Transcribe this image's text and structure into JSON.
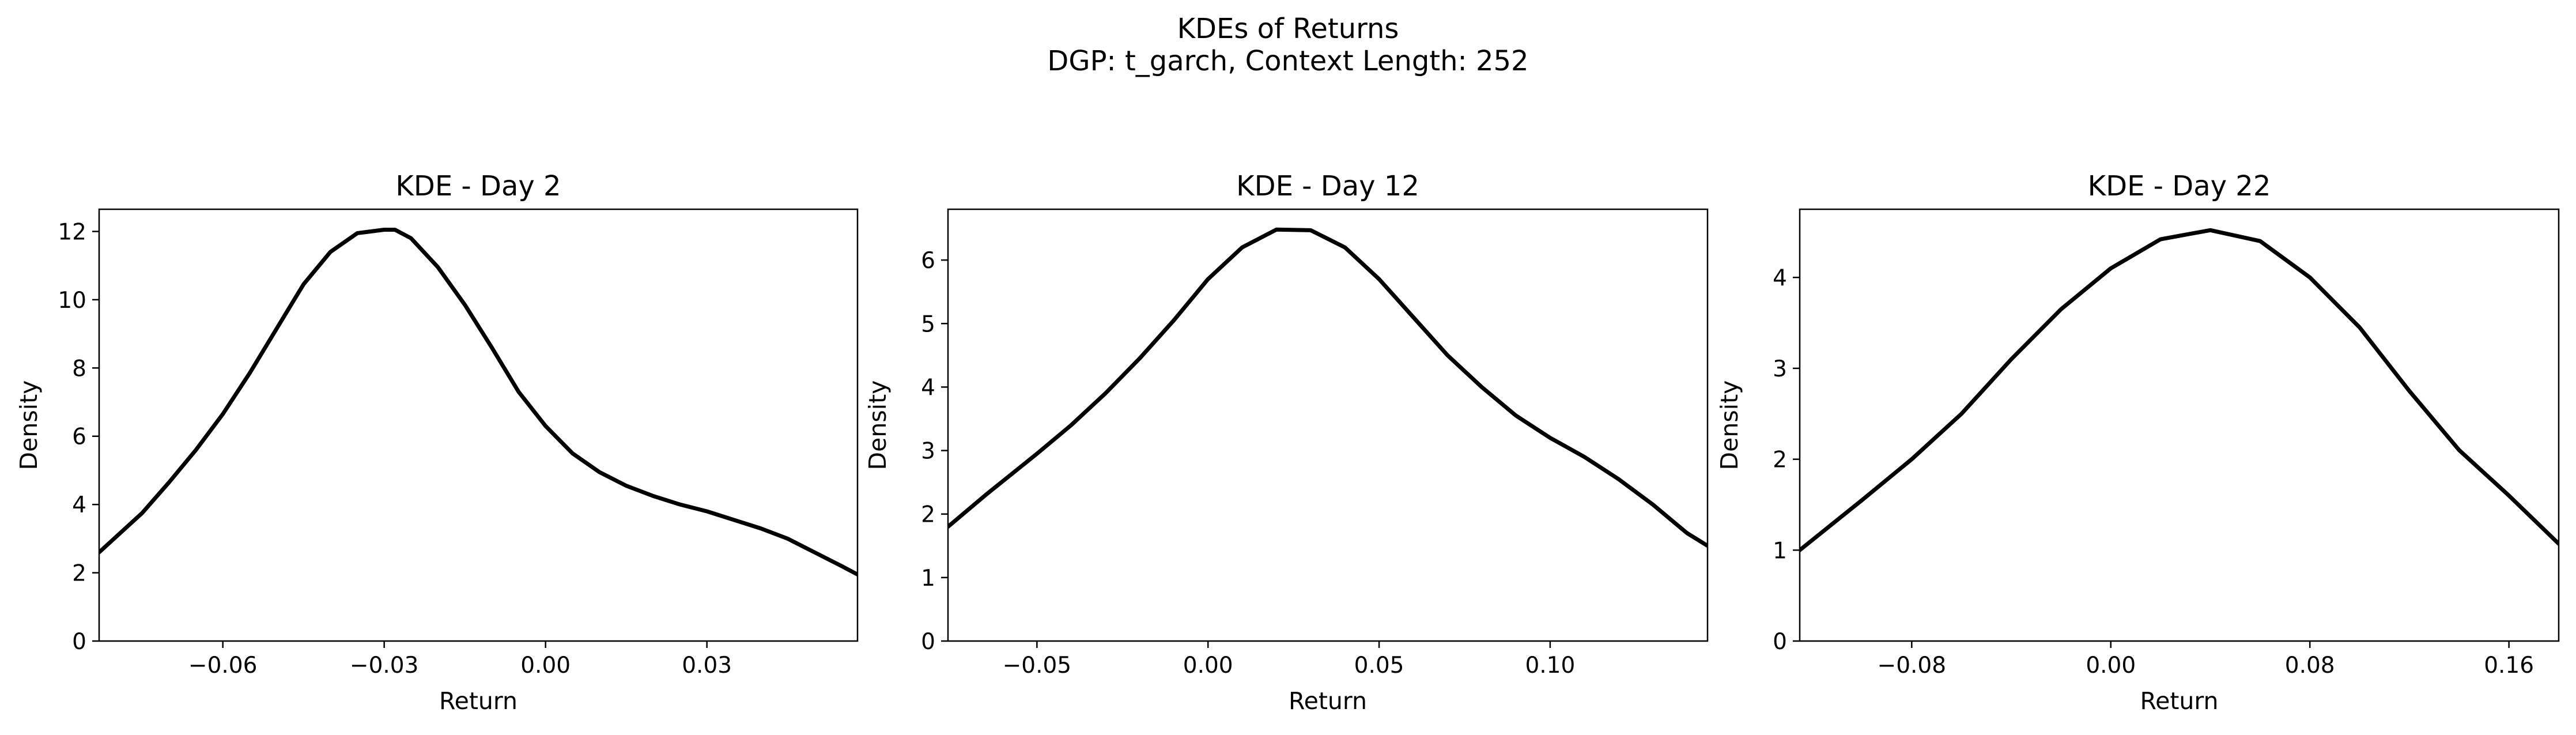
{
  "figure": {
    "title_line1": "KDEs of Returns",
    "title_line2": "DGP: t_garch, Context Length: 252"
  },
  "style": {
    "line_color": "#000000",
    "background": "#ffffff"
  },
  "chart_data": [
    {
      "type": "line",
      "title": "KDE - Day 2",
      "xlabel": "Return",
      "ylabel": "Density",
      "xlim": [
        -0.083,
        0.058
      ],
      "ylim": [
        0,
        12.65
      ],
      "xticks": [
        -0.06,
        -0.03,
        0.0,
        0.03
      ],
      "xtick_labels": [
        "−0.06",
        "−0.03",
        "0.00",
        "0.03"
      ],
      "yticks": [
        0,
        2,
        4,
        6,
        8,
        10,
        12
      ],
      "ytick_labels": [
        "0",
        "2",
        "4",
        "6",
        "8",
        "10",
        "12"
      ],
      "grid": false,
      "legend": false,
      "series": [
        {
          "x": [
            -0.083,
            -0.075,
            -0.07,
            -0.065,
            -0.06,
            -0.055,
            -0.05,
            -0.045,
            -0.04,
            -0.035,
            -0.03,
            -0.028,
            -0.025,
            -0.02,
            -0.015,
            -0.01,
            -0.005,
            0.0,
            0.005,
            0.01,
            0.015,
            0.02,
            0.025,
            0.03,
            0.035,
            0.04,
            0.045,
            0.05,
            0.055,
            0.058
          ],
          "y": [
            2.6,
            3.75,
            4.65,
            5.6,
            6.65,
            7.85,
            9.15,
            10.45,
            11.4,
            11.95,
            12.05,
            12.05,
            11.8,
            10.95,
            9.85,
            8.6,
            7.3,
            6.3,
            5.5,
            4.95,
            4.55,
            4.25,
            4.0,
            3.8,
            3.55,
            3.3,
            3.0,
            2.6,
            2.2,
            1.95
          ]
        }
      ]
    },
    {
      "type": "line",
      "title": "KDE - Day 12",
      "xlabel": "Return",
      "ylabel": "Density",
      "xlim": [
        -0.076,
        0.146
      ],
      "ylim": [
        0,
        6.8
      ],
      "xticks": [
        -0.05,
        0.0,
        0.05,
        0.1
      ],
      "xtick_labels": [
        "−0.05",
        "0.00",
        "0.05",
        "0.10"
      ],
      "yticks": [
        0,
        1,
        2,
        3,
        4,
        5,
        6
      ],
      "ytick_labels": [
        "0",
        "1",
        "2",
        "3",
        "4",
        "5",
        "6"
      ],
      "grid": false,
      "legend": false,
      "series": [
        {
          "x": [
            -0.076,
            -0.065,
            -0.05,
            -0.04,
            -0.03,
            -0.02,
            -0.01,
            0.0,
            0.01,
            0.02,
            0.03,
            0.04,
            0.05,
            0.06,
            0.07,
            0.08,
            0.09,
            0.1,
            0.11,
            0.12,
            0.13,
            0.14,
            0.146
          ],
          "y": [
            1.8,
            2.3,
            2.95,
            3.4,
            3.9,
            4.45,
            5.05,
            5.7,
            6.2,
            6.48,
            6.47,
            6.2,
            5.7,
            5.1,
            4.5,
            4.0,
            3.55,
            3.2,
            2.9,
            2.55,
            2.15,
            1.7,
            1.5
          ]
        }
      ]
    },
    {
      "type": "line",
      "title": "KDE - Day 22",
      "xlabel": "Return",
      "ylabel": "Density",
      "xlim": [
        -0.125,
        0.18
      ],
      "ylim": [
        0,
        4.75
      ],
      "xticks": [
        -0.08,
        0.0,
        0.08,
        0.16
      ],
      "xtick_labels": [
        "−0.08",
        "0.00",
        "0.08",
        "0.16"
      ],
      "yticks": [
        0,
        1,
        2,
        3,
        4
      ],
      "ytick_labels": [
        "0",
        "1",
        "2",
        "3",
        "4"
      ],
      "grid": false,
      "legend": false,
      "series": [
        {
          "x": [
            -0.125,
            -0.1,
            -0.08,
            -0.06,
            -0.04,
            -0.02,
            0.0,
            0.02,
            0.04,
            0.06,
            0.08,
            0.1,
            0.12,
            0.14,
            0.16,
            0.18
          ],
          "y": [
            1.0,
            1.55,
            2.0,
            2.5,
            3.1,
            3.65,
            4.1,
            4.42,
            4.52,
            4.4,
            4.0,
            3.45,
            2.75,
            2.1,
            1.6,
            1.07
          ]
        }
      ]
    }
  ]
}
